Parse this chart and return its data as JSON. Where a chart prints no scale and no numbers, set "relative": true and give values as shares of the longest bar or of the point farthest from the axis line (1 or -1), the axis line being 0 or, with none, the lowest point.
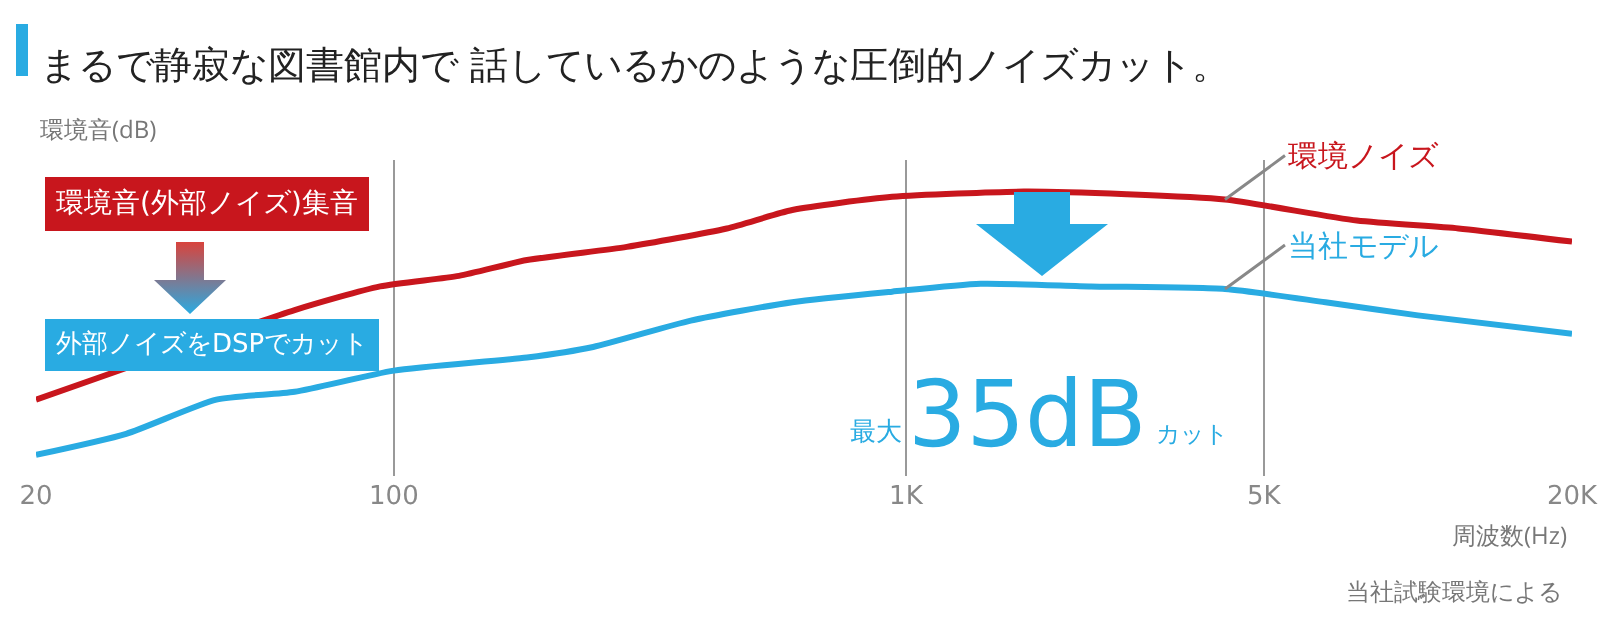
{
  "chart_data": {
    "type": "line",
    "title": "まるで静寂な図書館内で 話しているかのような圧倒的ノイズカット。",
    "ylabel": "環境音(dB)",
    "xlabel": "周波数(Hz)",
    "relative": true,
    "log": "x",
    "xlim": [
      20,
      20000
    ],
    "xticks": [
      20,
      100,
      {
        "value": 1000,
        "label": "1K"
      },
      {
        "value": 5000,
        "label": "5K"
      },
      {
        "value": 20000,
        "label": "20K"
      }
    ],
    "grid": "x",
    "legend": false,
    "marker": "none",
    "line_style": "solid",
    "series": [
      {
        "name": "環境ノイズ",
        "color": "#c8161d",
        "x": [
          20,
          30,
          48,
          64,
          94,
          134,
          182,
          285,
          447,
          600,
          940,
          1700,
          2700,
          4200,
          7600,
          12000,
          20000
        ],
        "values": [
          0.21,
          0.33,
          null,
          0.55,
          0.64,
          0.68,
          0.74,
          0.79,
          0.86,
          0.93,
          0.98,
          1,
          0.99,
          0.97,
          0.89,
          0.86,
          0.81
        ]
      },
      {
        "name": "当社モデル",
        "color": "#29abe2",
        "x": [
          20,
          30,
          45,
          64,
          100,
          182,
          245,
          380,
          600,
          940,
          1400,
          2300,
          4200,
          6600,
          10000,
          20000
        ],
        "values": [
          0,
          0.08,
          0.21,
          0.24,
          0.32,
          0.37,
          0.41,
          0.51,
          0.58,
          0.62,
          0.65,
          0.64,
          0.63,
          0.58,
          0.53,
          0.46
        ]
      }
    ],
    "annotations": [
      "環境音(外部ノイズ)集音",
      "外部ノイズをDSPでカット",
      "最大",
      "35dB",
      "カット",
      "当社試験環境による"
    ]
  }
}
